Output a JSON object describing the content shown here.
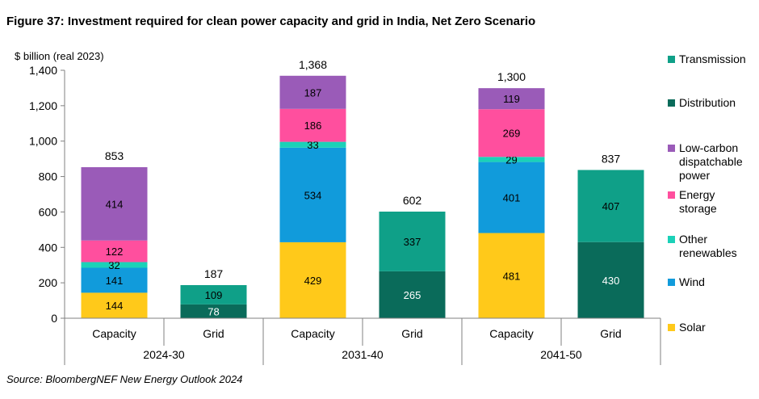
{
  "figure": {
    "title": "Figure 37: Investment required for clean power capacity and grid in India, Net Zero Scenario",
    "source": "Source: BloombergNEF New Energy Outlook 2024"
  },
  "chart_data": {
    "type": "bar",
    "stacked": true,
    "title": "Figure 37: Investment required for clean power capacity and grid in India, Net Zero Scenario",
    "ylabel": "$ billion (real 2023)",
    "ylim": [
      0,
      1400
    ],
    "yticks": [
      0,
      200,
      400,
      600,
      800,
      1000,
      1200,
      1400
    ],
    "ytick_labels": [
      "0",
      "200",
      "400",
      "600",
      "800",
      "1,000",
      "1,200",
      "1,400"
    ],
    "groups": [
      "2024-30",
      "2031-40",
      "2041-50"
    ],
    "categories": [
      {
        "label": "Capacity",
        "group": "2024-30"
      },
      {
        "label": "Grid",
        "group": "2024-30"
      },
      {
        "label": "Capacity",
        "group": "2031-40"
      },
      {
        "label": "Grid",
        "group": "2031-40"
      },
      {
        "label": "Capacity",
        "group": "2041-50"
      },
      {
        "label": "Grid",
        "group": "2041-50"
      }
    ],
    "series": [
      {
        "name": "Solar",
        "color": "#FFC91A",
        "values": [
          144,
          0,
          429,
          0,
          481,
          0
        ]
      },
      {
        "name": "Wind",
        "color": "#119BDB",
        "values": [
          141,
          0,
          534,
          0,
          401,
          0
        ]
      },
      {
        "name": "Other renewables",
        "color": "#1BD1B8",
        "values": [
          32,
          0,
          33,
          0,
          29,
          0
        ]
      },
      {
        "name": "Energy storage",
        "color": "#FF4F9E",
        "values": [
          122,
          0,
          186,
          0,
          269,
          0
        ]
      },
      {
        "name": "Low-carbon dispatchable power",
        "color": "#9A5BB8",
        "values": [
          414,
          0,
          187,
          0,
          119,
          0
        ]
      },
      {
        "name": "Distribution",
        "color": "#0A6B5A",
        "values": [
          0,
          78,
          0,
          265,
          0,
          430
        ]
      },
      {
        "name": "Transmission",
        "color": "#0FA088",
        "values": [
          0,
          109,
          0,
          337,
          0,
          407
        ]
      }
    ],
    "totals": [
      "853",
      "187",
      "1,368",
      "602",
      "1,300",
      "837"
    ],
    "legend": {
      "position": "right",
      "order": [
        "Transmission",
        "Distribution",
        "Low-carbon dispatchable power",
        "Energy storage",
        "Other renewables",
        "Wind",
        "Solar"
      ],
      "entries": [
        {
          "series": "Transmission",
          "lines": [
            "Transmission"
          ]
        },
        {
          "series": "Distribution",
          "lines": [
            "Distribution"
          ]
        },
        {
          "series": "Low-carbon dispatchable power",
          "lines": [
            "Low-carbon",
            "dispatchable",
            "power"
          ]
        },
        {
          "series": "Energy storage",
          "lines": [
            "Energy",
            "storage"
          ]
        },
        {
          "series": "Other renewables",
          "lines": [
            "Other",
            "renewables"
          ]
        },
        {
          "series": "Wind",
          "lines": [
            "Wind"
          ]
        },
        {
          "series": "Solar",
          "lines": [
            "Solar"
          ]
        }
      ]
    }
  }
}
